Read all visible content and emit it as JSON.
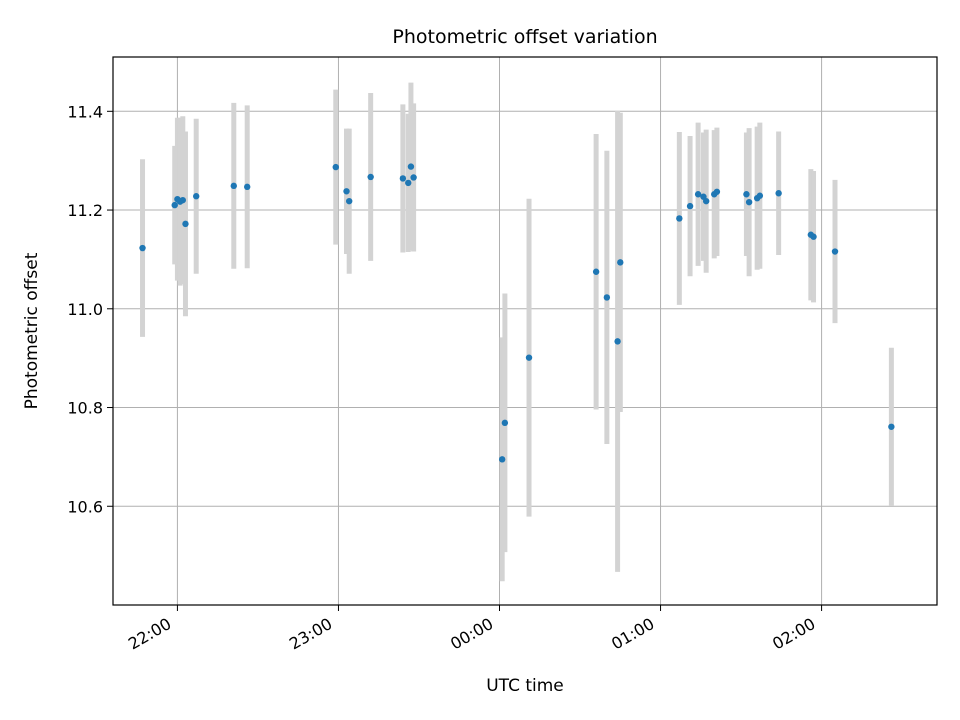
{
  "chart_data": {
    "type": "scatter",
    "title": "Photometric offset variation",
    "xlabel": "UTC time",
    "ylabel": "Photometric offset",
    "x_axis": {
      "type": "time",
      "xlim": [
        "21:36",
        "02:43"
      ],
      "ticks": [
        {
          "time": "22:00",
          "label": "22:00"
        },
        {
          "time": "23:00",
          "label": "23:00"
        },
        {
          "time": "00:00",
          "label": "00:00"
        },
        {
          "time": "01:00",
          "label": "01:00"
        },
        {
          "time": "02:00",
          "label": "02:00"
        }
      ]
    },
    "y_axis": {
      "ylim": [
        10.4,
        11.51
      ],
      "ticks": [
        {
          "value": 10.6,
          "label": "10.6"
        },
        {
          "value": 10.8,
          "label": "10.8"
        },
        {
          "value": 11.0,
          "label": "11.0"
        },
        {
          "value": 11.2,
          "label": "11.2"
        },
        {
          "value": 11.4,
          "label": "11.4"
        }
      ]
    },
    "grid": true,
    "legend": "none",
    "colors": {
      "point": "#1f77b4",
      "errorbar": "#d3d3d3",
      "grid": "#b0b0b0"
    },
    "points": [
      {
        "time": "21:47",
        "y": 11.123,
        "err": 0.18
      },
      {
        "time": "21:59",
        "y": 11.21,
        "err": 0.12
      },
      {
        "time": "22:00",
        "y": 11.222,
        "err": 0.165
      },
      {
        "time": "22:01",
        "y": 11.217,
        "err": 0.17
      },
      {
        "time": "22:02",
        "y": 11.22,
        "err": 0.17
      },
      {
        "time": "22:03",
        "y": 11.172,
        "err": 0.187
      },
      {
        "time": "22:07",
        "y": 11.228,
        "err": 0.157
      },
      {
        "time": "22:21",
        "y": 11.249,
        "err": 0.168
      },
      {
        "time": "22:26",
        "y": 11.247,
        "err": 0.165
      },
      {
        "time": "22:59",
        "y": 11.287,
        "err": 0.157
      },
      {
        "time": "23:03",
        "y": 11.238,
        "err": 0.127
      },
      {
        "time": "23:04",
        "y": 11.218,
        "err": 0.147
      },
      {
        "time": "23:12",
        "y": 11.267,
        "err": 0.17
      },
      {
        "time": "23:24",
        "y": 11.264,
        "err": 0.15
      },
      {
        "time": "23:26",
        "y": 11.255,
        "err": 0.14
      },
      {
        "time": "23:27",
        "y": 11.288,
        "err": 0.17
      },
      {
        "time": "23:28",
        "y": 11.266,
        "err": 0.15
      },
      {
        "time": "00:01",
        "y": 10.695,
        "err": 0.247
      },
      {
        "time": "00:02",
        "y": 10.769,
        "err": 0.262
      },
      {
        "time": "00:11",
        "y": 10.901,
        "err": 0.322
      },
      {
        "time": "00:36",
        "y": 11.075,
        "err": 0.279
      },
      {
        "time": "00:40",
        "y": 11.023,
        "err": 0.297
      },
      {
        "time": "00:44",
        "y": 10.934,
        "err": 0.467
      },
      {
        "time": "00:45",
        "y": 11.094,
        "err": 0.303
      },
      {
        "time": "01:07",
        "y": 11.183,
        "err": 0.175
      },
      {
        "time": "01:11",
        "y": 11.208,
        "err": 0.142
      },
      {
        "time": "01:14",
        "y": 11.232,
        "err": 0.145
      },
      {
        "time": "01:16",
        "y": 11.227,
        "err": 0.13
      },
      {
        "time": "01:17",
        "y": 11.218,
        "err": 0.145
      },
      {
        "time": "01:20",
        "y": 11.232,
        "err": 0.13
      },
      {
        "time": "01:21",
        "y": 11.237,
        "err": 0.13
      },
      {
        "time": "01:32",
        "y": 11.232,
        "err": 0.125
      },
      {
        "time": "01:33",
        "y": 11.216,
        "err": 0.15
      },
      {
        "time": "01:36",
        "y": 11.224,
        "err": 0.145
      },
      {
        "time": "01:37",
        "y": 11.229,
        "err": 0.148
      },
      {
        "time": "01:44",
        "y": 11.234,
        "err": 0.125
      },
      {
        "time": "01:56",
        "y": 11.15,
        "err": 0.133
      },
      {
        "time": "01:57",
        "y": 11.146,
        "err": 0.133
      },
      {
        "time": "02:05",
        "y": 11.116,
        "err": 0.145
      },
      {
        "time": "02:26",
        "y": 10.761,
        "err": 0.16
      }
    ]
  }
}
